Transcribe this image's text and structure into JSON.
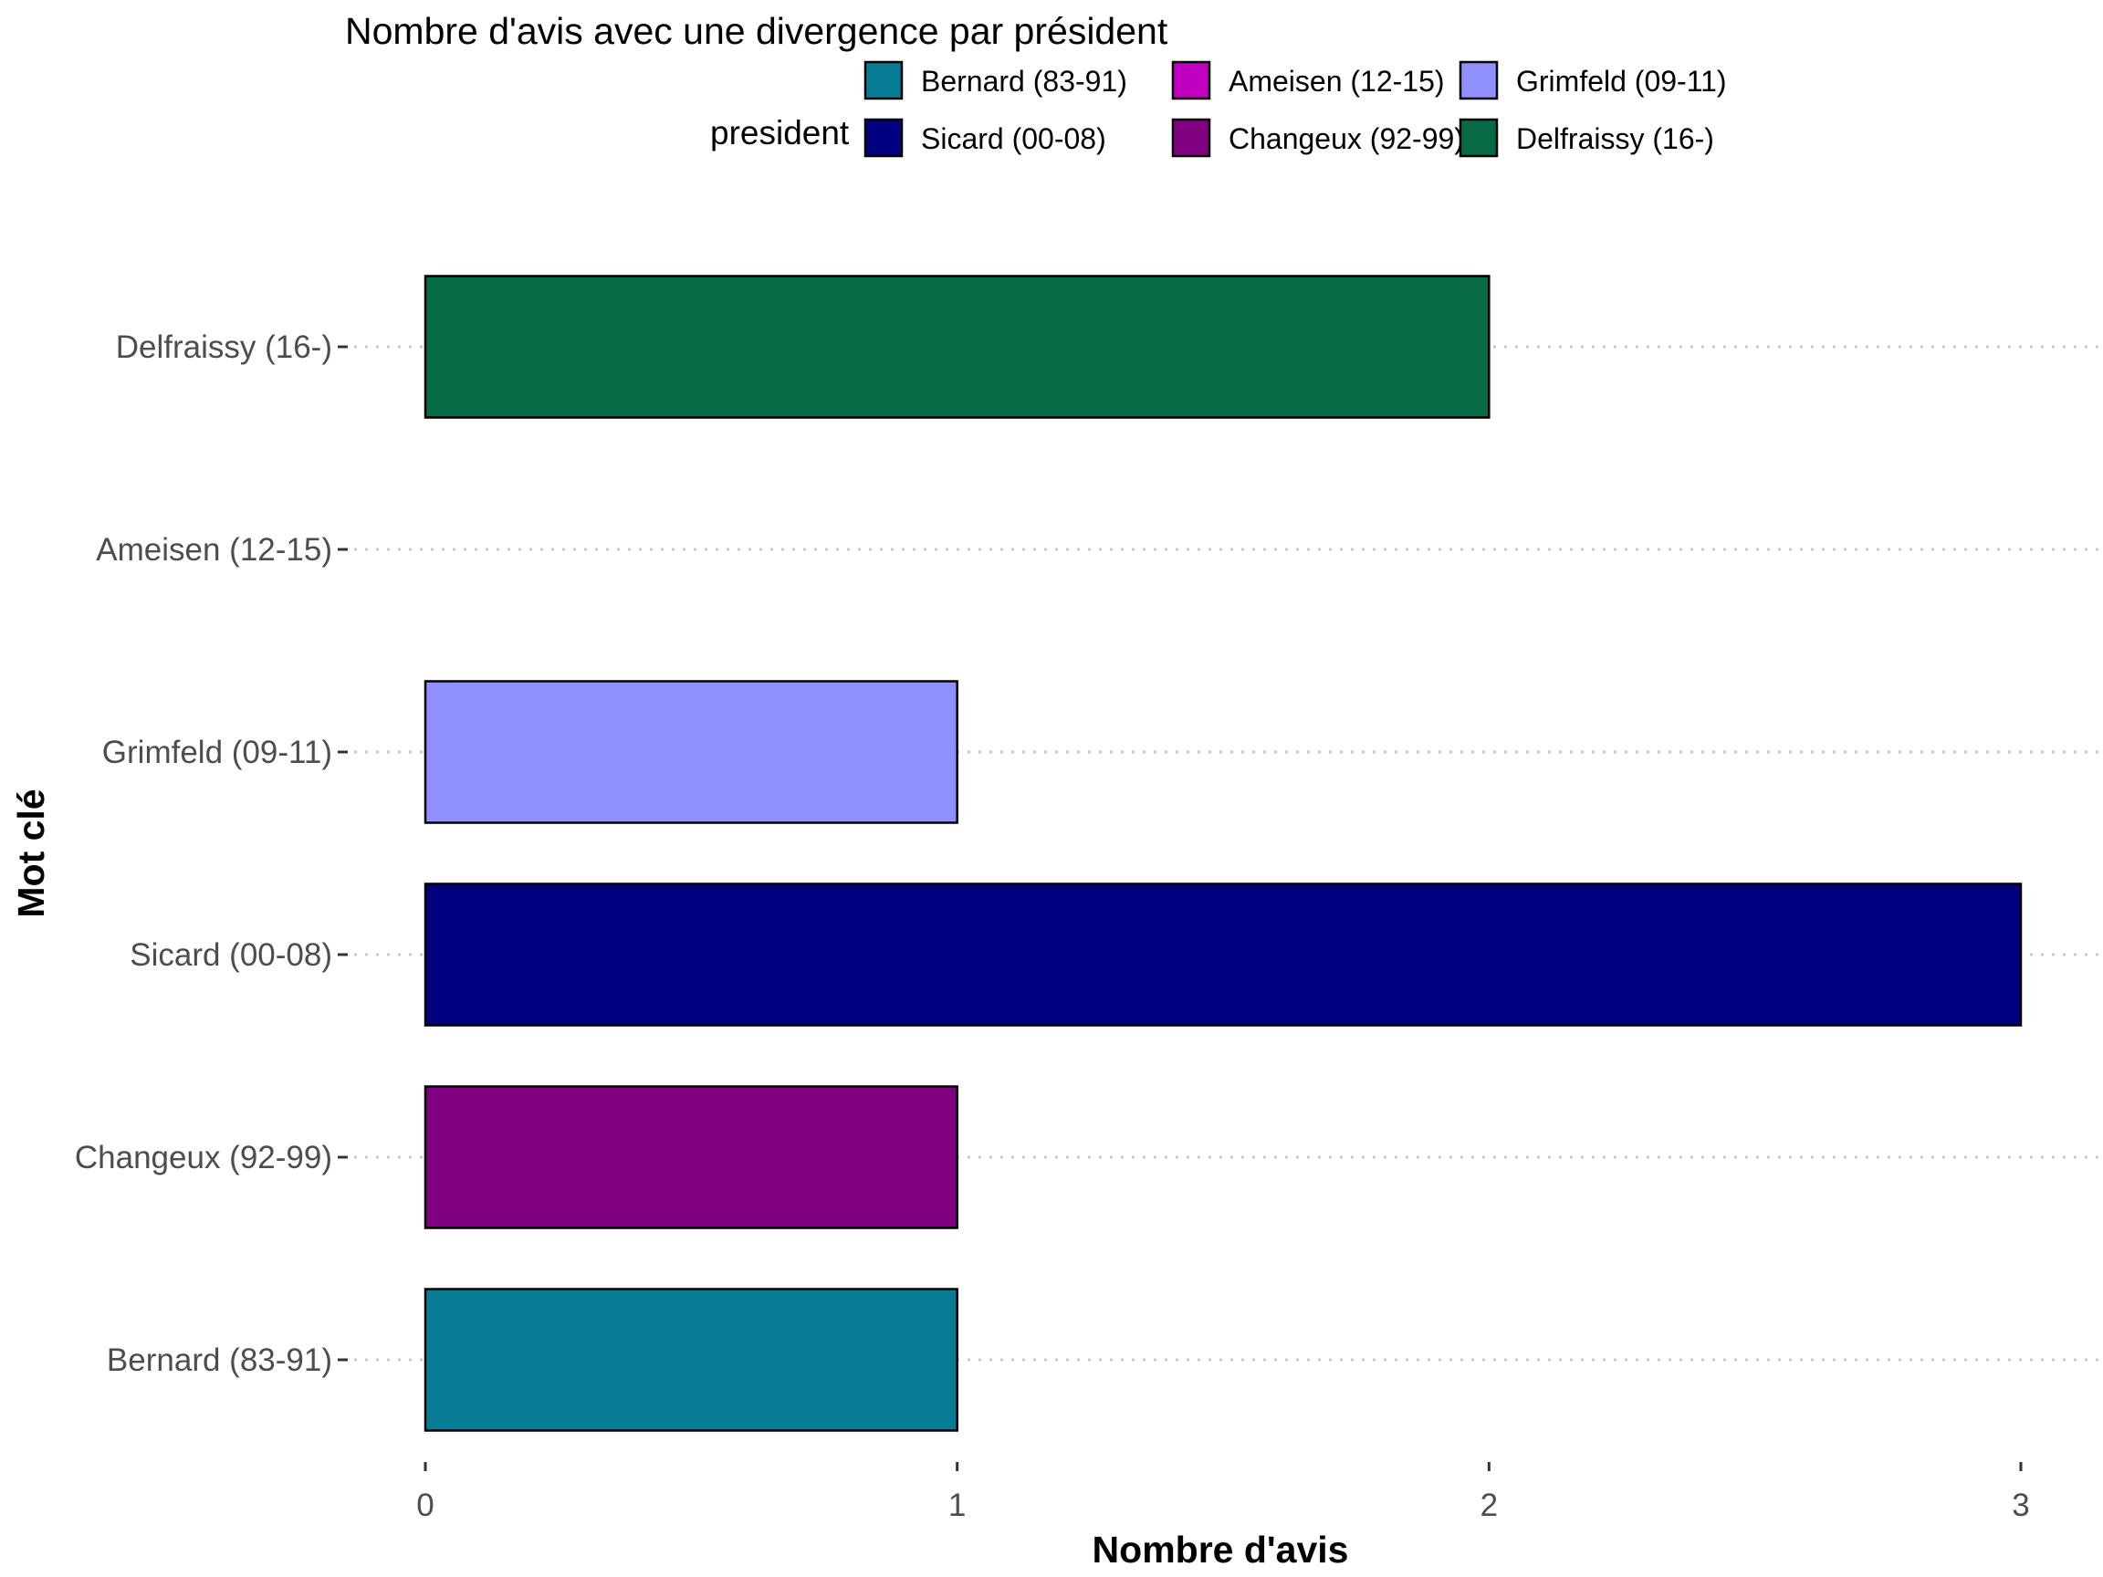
{
  "chart_data": {
    "type": "bar",
    "orientation": "horizontal",
    "title": "Nombre d'avis avec une divergence par président",
    "xlabel": "Nombre d'avis",
    "ylabel": "Mot clé",
    "xlim": [
      0,
      3
    ],
    "xticks": [
      "0",
      "1",
      "2",
      "3"
    ],
    "grid": "horizontal dotted",
    "legend": {
      "title": "president",
      "placement": "top",
      "entries": [
        {
          "label": "Bernard (83-91)",
          "color": "#077d95"
        },
        {
          "label": "Sicard (00-08)",
          "color": "#000080"
        },
        {
          "label": "Ameisen (12-15)",
          "color": "#c000c0"
        },
        {
          "label": "Changeux (92-99)",
          "color": "#800080"
        },
        {
          "label": "Grimfeld (09-11)",
          "color": "#8f8fff"
        },
        {
          "label": "Delfraissy (16-)",
          "color": "#076b45"
        }
      ]
    },
    "categories": [
      "Delfraissy (16-)",
      "Ameisen (12-15)",
      "Grimfeld (09-11)",
      "Sicard (00-08)",
      "Changeux (92-99)",
      "Bernard (83-91)"
    ],
    "values": [
      2,
      0,
      1,
      3,
      1,
      1
    ],
    "colors": [
      "#076b45",
      "#c000c0",
      "#8f8fff",
      "#000080",
      "#800080",
      "#077d95"
    ]
  }
}
